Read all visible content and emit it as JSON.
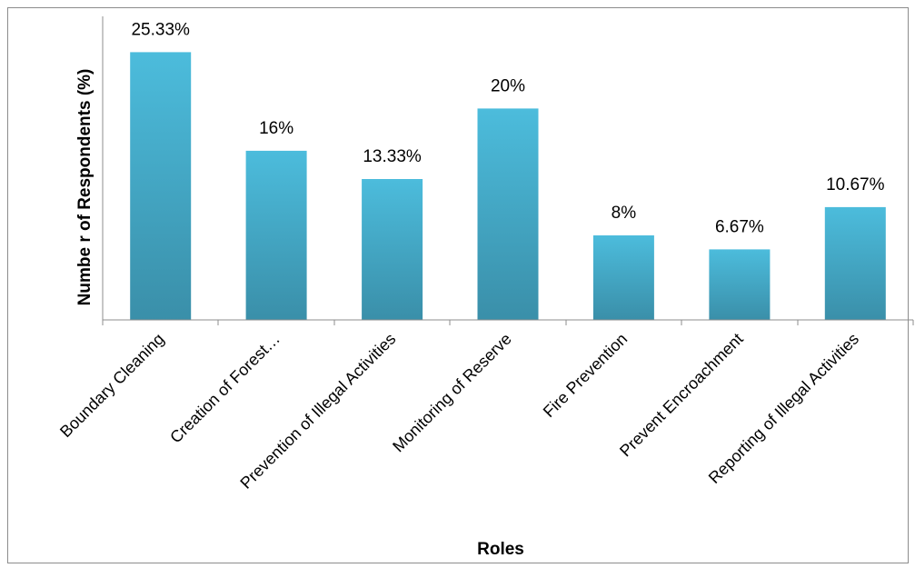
{
  "chart_data": {
    "type": "bar",
    "title": "",
    "xlabel": "Roles",
    "ylabel": "Numbe r of Respondents (%)",
    "categories": [
      "Boundary Cleaning",
      "Creation of Forest…",
      "Prevention of Illegal Activities",
      "Monitoring of Reserve",
      "Fire Prevention",
      "Prevent Encroachment",
      "Reporting of Illegal Activities"
    ],
    "values": [
      25.33,
      16,
      13.33,
      20,
      8,
      6.67,
      10.67
    ],
    "data_labels": [
      "25.33%",
      "16%",
      "13.33%",
      "20%",
      "8%",
      "6.67%",
      "10.67%"
    ],
    "ylim": [
      0,
      30
    ],
    "grid": false,
    "legend": "none",
    "colors": {
      "bar_top": "#4cbcdc",
      "bar_bottom": "#3a8fa9",
      "axis": "#8c8c8c"
    }
  }
}
